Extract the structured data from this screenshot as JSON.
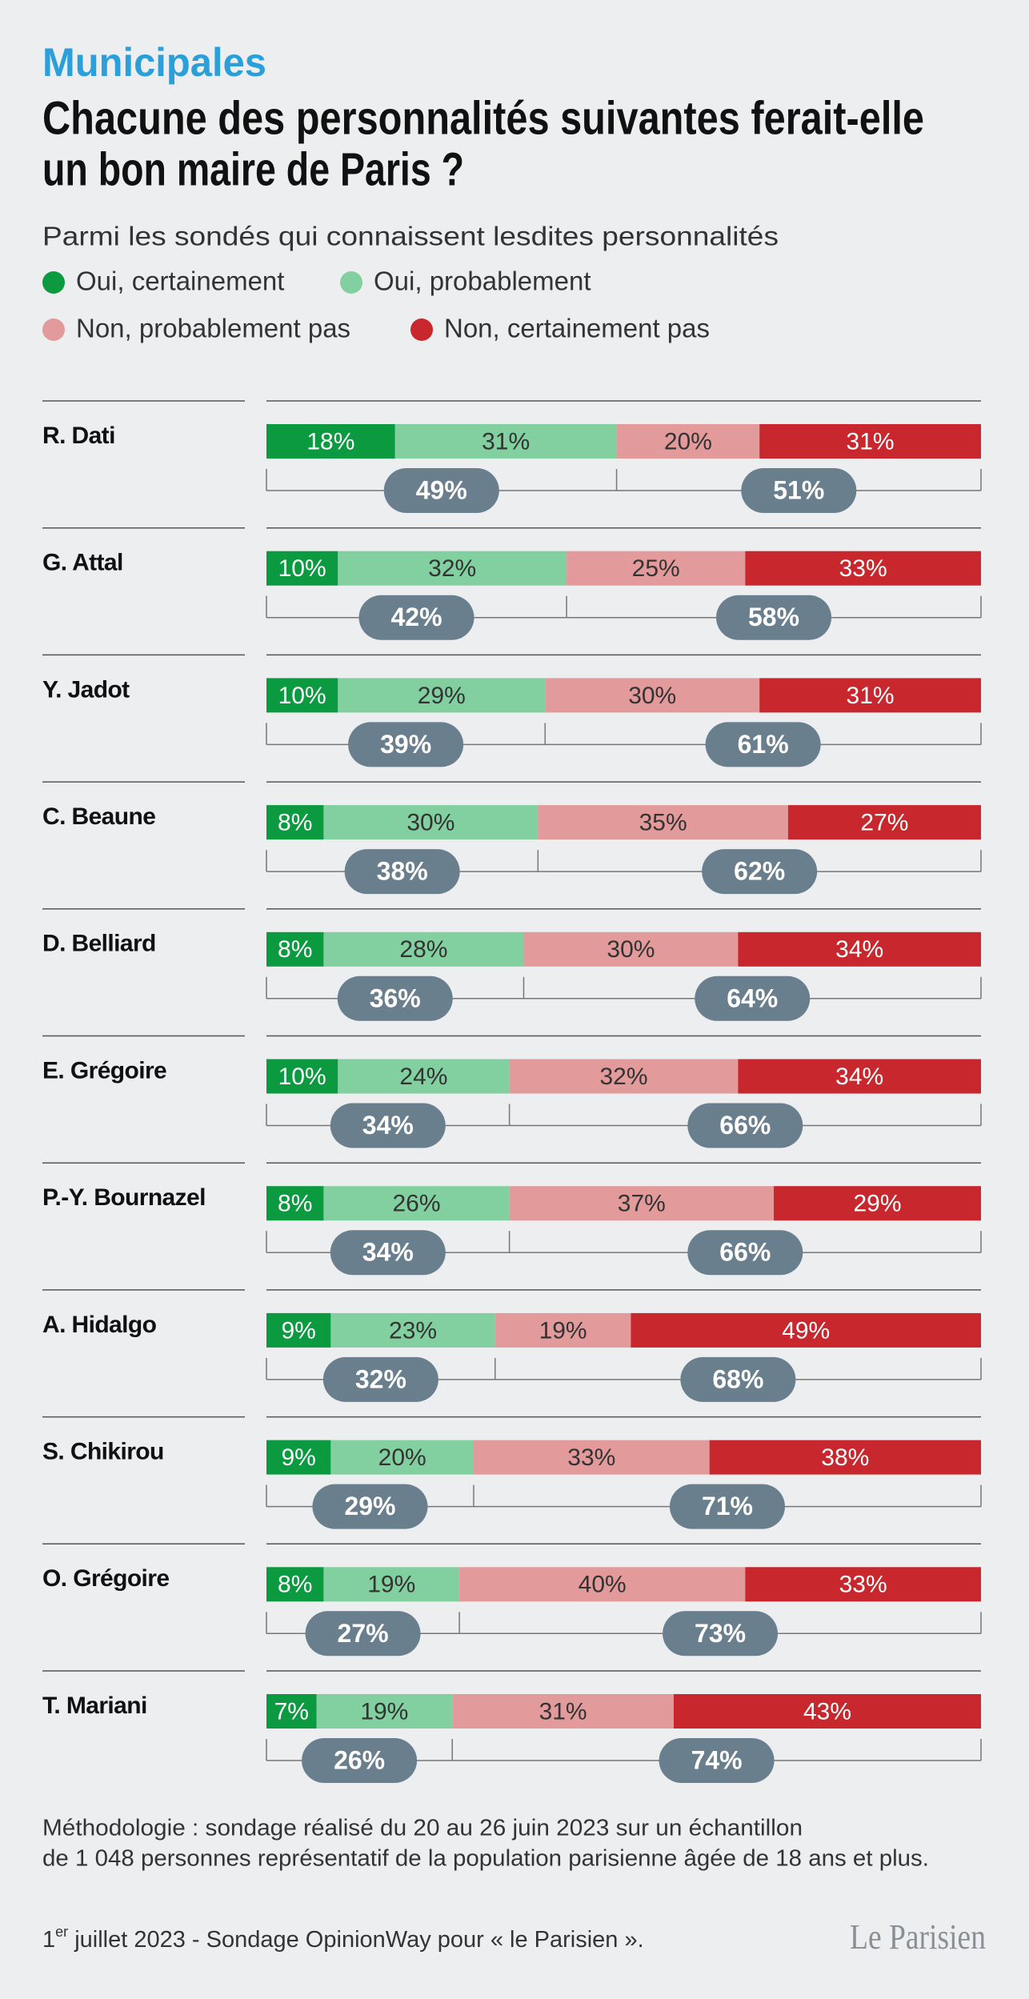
{
  "chart_data": {
    "type": "stacked-bar-100",
    "kicker": "Municipales",
    "title_lines": [
      "Chacune des personnalités suivantes ferait-elle",
      "un bon maire de Paris ?"
    ],
    "subtitle": "Parmi les sondés qui connaissent lesdites personnalités",
    "categories": [
      "R. Dati",
      "G. Attal",
      "Y. Jadot",
      "C. Beaune",
      "D. Belliard",
      "E. Grégoire",
      "P.-Y. Bournazel",
      "A. Hidalgo",
      "S. Chikirou",
      "O. Grégoire",
      "T. Mariani"
    ],
    "xlim": [
      0,
      100
    ],
    "series": [
      {
        "name": "Oui, certainement",
        "color": "#0b9a40",
        "text_color": "#ffffff",
        "values": [
          18,
          10,
          10,
          8,
          8,
          10,
          8,
          9,
          9,
          8,
          7
        ],
        "value_labels": [
          "18%",
          "10%",
          "10%",
          "8%",
          "8%",
          "10%",
          "8%",
          "9%",
          "9%",
          "8%",
          "7%"
        ]
      },
      {
        "name": "Oui, probablement",
        "color": "#82cfa0",
        "text_color": "#333333",
        "values": [
          31,
          32,
          29,
          30,
          28,
          24,
          26,
          23,
          20,
          19,
          19
        ],
        "value_labels": [
          "31%",
          "32%",
          "29%",
          "30%",
          "28%",
          "24%",
          "26%",
          "23%",
          "20%",
          "19%",
          "19%"
        ]
      },
      {
        "name": "Non, probablement pas",
        "color": "#e39a9b",
        "text_color": "#333333",
        "values": [
          20,
          25,
          30,
          35,
          30,
          32,
          37,
          19,
          33,
          40,
          31
        ],
        "value_labels": [
          "20%",
          "25%",
          "30%",
          "35%",
          "30%",
          "32%",
          "37%",
          "19%",
          "33%",
          "40%",
          "31%"
        ]
      },
      {
        "name": "Non, certainement pas",
        "color": "#c7272d",
        "text_color": "#ffffff",
        "values": [
          31,
          33,
          31,
          27,
          34,
          34,
          29,
          49,
          38,
          33,
          43
        ],
        "value_labels": [
          "31%",
          "33%",
          "31%",
          "27%",
          "34%",
          "34%",
          "29%",
          "49%",
          "38%",
          "33%",
          "43%"
        ]
      }
    ],
    "groups": [
      {
        "values": [
          49,
          42,
          39,
          38,
          36,
          34,
          34,
          32,
          29,
          27,
          26
        ],
        "value_labels": [
          "49%",
          "42%",
          "39%",
          "38%",
          "36%",
          "34%",
          "34%",
          "32%",
          "29%",
          "27%",
          "26%"
        ]
      },
      {
        "values": [
          51,
          58,
          61,
          62,
          64,
          66,
          66,
          68,
          71,
          73,
          74
        ],
        "value_labels": [
          "51%",
          "58%",
          "61%",
          "62%",
          "64%",
          "66%",
          "66%",
          "68%",
          "71%",
          "73%",
          "74%"
        ]
      }
    ],
    "group_color": "#6a7f8e",
    "notes": [
      "Méthodologie : sondage réalisé du 20 au 26 juin 2023 sur un échantillon",
      "de 1 048 personnes représentatif de la population parisienne âgée de 18 ans et plus."
    ],
    "source": {
      "day": "1",
      "ordinal": "er",
      "rest": " juillet 2023 - Sondage OpinionWay pour « le Parisien »."
    },
    "logo": "Le Parisien"
  }
}
